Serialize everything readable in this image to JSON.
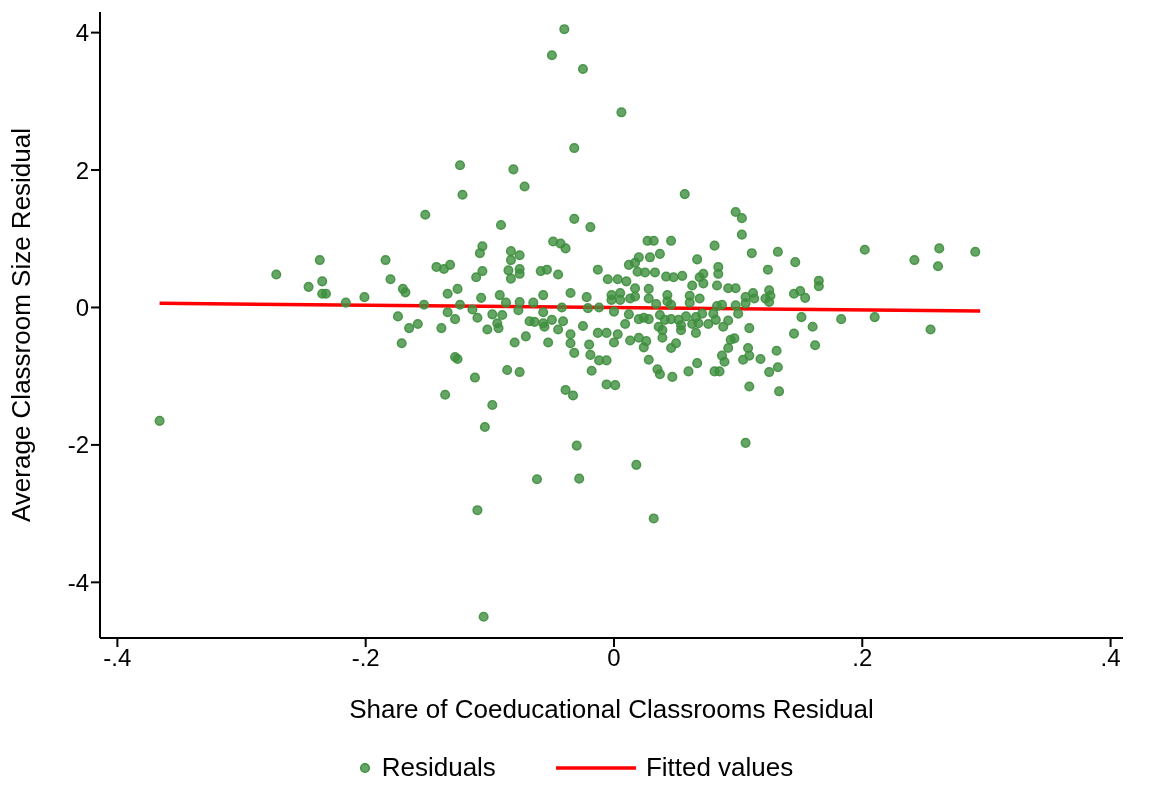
{
  "chart_data": {
    "type": "scatter",
    "xlabel": "Share of Coeducational Classrooms Residual",
    "ylabel": "Average Classroom Size Residual",
    "xlim": [
      -0.414,
      0.41
    ],
    "ylim": [
      -4.81,
      4.3
    ],
    "xticks": [
      {
        "value": -0.4,
        "label": "-.4"
      },
      {
        "value": -0.2,
        "label": "-.2"
      },
      {
        "value": 0,
        "label": "0"
      },
      {
        "value": 0.2,
        "label": ".2"
      },
      {
        "value": 0.4,
        "label": ".4"
      }
    ],
    "yticks": [
      -4,
      -2,
      0,
      2,
      4
    ],
    "legend": "bottom",
    "series": [
      {
        "name": "Residuals",
        "color": "#3f8f3f",
        "marker": "circle",
        "x": [
          -0.04,
          -0.05,
          -0.025,
          -0.032,
          -0.124,
          -0.081,
          -0.072,
          -0.122,
          -0.152,
          -0.032,
          -0.091,
          -0.019,
          -0.049,
          -0.043,
          -0.039,
          -0.106,
          -0.108,
          -0.083,
          -0.076,
          -0.083,
          -0.272,
          -0.237,
          -0.184,
          -0.246,
          -0.235,
          -0.235,
          -0.232,
          -0.18,
          -0.17,
          -0.168,
          -0.201,
          -0.216,
          -0.143,
          -0.137,
          -0.132,
          -0.153,
          -0.134,
          -0.126,
          -0.106,
          -0.111,
          -0.059,
          -0.054,
          -0.045,
          -0.013,
          -0.076,
          -0.076,
          -0.085,
          -0.083,
          0.006,
          0.057,
          0.098,
          0.103,
          0.103,
          0.027,
          0.032,
          0.046,
          0.081,
          0.037,
          0.02,
          0.029,
          0.067,
          0.111,
          0.132,
          0.146,
          0.124,
          0.202,
          0.242,
          0.262,
          0.261,
          0.291,
          0.165,
          0.165,
          0.145,
          0.15,
          0.154,
          0.012,
          0.017,
          0.019,
          0.025,
          0.033,
          0.042,
          0.048,
          0.055,
          0.084,
          0.084,
          0.083,
          0.072,
          0.069,
          0.072,
          0.003,
          0.01,
          -0.005,
          0.112,
          0.106,
          0.125,
          0.126,
          0.092,
          0.098,
          0.061,
          0.063,
          0.017,
          0.028,
          0.043,
          0.005,
          -0.002,
          -0.366,
          -0.105,
          -0.11,
          -0.062,
          -0.028,
          -0.03,
          -0.104,
          -0.098,
          -0.136,
          -0.112,
          -0.039,
          -0.033,
          -0.086,
          -0.076,
          -0.018,
          -0.128,
          -0.126,
          -0.032,
          -0.019,
          -0.012,
          -0.006,
          -0.171,
          -0.08,
          -0.071,
          -0.053,
          -0.035,
          -0.035,
          -0.02,
          -0.013,
          -0.139,
          -0.165,
          -0.158,
          -0.174,
          -0.134,
          -0.128,
          -0.11,
          -0.102,
          -0.093,
          -0.098,
          -0.09,
          -0.094,
          -0.068,
          -0.064,
          -0.057,
          -0.056,
          -0.05,
          -0.041,
          -0.045,
          -0.057,
          -0.025,
          -0.114,
          -0.077,
          0.032,
          0.018,
          0.106,
          0.133,
          0.109,
          0.001,
          0.125,
          0.132,
          0.081,
          0.085,
          0.06,
          0.047,
          0.037,
          0.035,
          0.067,
          0.028,
          -0.006,
          0.089,
          0.087,
          0.104,
          0.109,
          0.118,
          0.131,
          0.108,
          0.092,
          0.162,
          0.255,
          0.21,
          0.183,
          0.16,
          0.145,
          0.151,
          0.046,
          0.05,
          0.024,
          0.02,
          0.026,
          0.013,
          0.0,
          0.003,
          0.009,
          -0.006,
          0.039,
          0.039,
          0.036,
          0.054,
          0.054,
          0.066,
          0.063,
          0.068,
          0.066,
          0.088,
          0.076,
          0.082,
          0.092,
          0.097,
          0.094,
          0.109,
          0.037,
          0.041,
          0.046,
          0.052,
          0.058,
          0.02,
          0.024,
          0.028,
          0.012,
          0.0,
          0.1,
          0.071,
          0.08,
          -0.002,
          0.005,
          0.013,
          0.017,
          0.028,
          0.034,
          0.043,
          0.046,
          0.061,
          0.069,
          0.083,
          0.087,
          0.098,
          0.106,
          0.113,
          0.122,
          0.125,
          -0.107,
          -0.092,
          -0.076,
          -0.065,
          -0.057,
          -0.042,
          -0.035,
          -0.022,
          -0.021,
          -0.012,
          -0.087,
          -0.124
        ],
        "values": [
          4.05,
          3.67,
          3.47,
          2.32,
          2.07,
          2.01,
          1.76,
          1.64,
          1.35,
          1.29,
          1.2,
          1.17,
          0.96,
          0.93,
          0.86,
          0.89,
          0.79,
          0.82,
          0.76,
          0.69,
          0.48,
          0.69,
          0.69,
          0.3,
          0.38,
          0.2,
          0.2,
          0.41,
          0.27,
          0.22,
          0.15,
          0.07,
          0.59,
          0.56,
          0.62,
          0.04,
          0.2,
          0.27,
          0.53,
          0.44,
          0.53,
          0.55,
          0.48,
          0.55,
          0.56,
          0.49,
          0.54,
          0.42,
          2.84,
          1.65,
          1.39,
          1.3,
          1.06,
          0.97,
          0.97,
          0.97,
          0.9,
          0.78,
          0.73,
          0.73,
          0.7,
          0.79,
          0.81,
          0.66,
          0.55,
          0.84,
          0.69,
          0.86,
          0.6,
          0.81,
          0.39,
          0.31,
          0.2,
          0.24,
          0.14,
          0.62,
          0.65,
          0.52,
          0.51,
          0.51,
          0.45,
          0.44,
          0.46,
          0.59,
          0.49,
          0.32,
          0.49,
          0.44,
          0.35,
          0.41,
          0.38,
          0.41,
          0.21,
          0.15,
          0.25,
          0.17,
          0.28,
          0.28,
          0.17,
          0.32,
          0.28,
          0.27,
          0.18,
          0.21,
          0.18,
          -1.65,
          -4.5,
          -2.95,
          -2.5,
          -2.49,
          -2.01,
          -1.74,
          -1.42,
          -1.27,
          -1.02,
          -1.2,
          -1.28,
          -0.91,
          -0.94,
          -0.92,
          -0.72,
          -0.75,
          -0.66,
          -0.69,
          -0.77,
          -1.12,
          -0.52,
          -0.51,
          -0.42,
          -0.51,
          -0.52,
          -0.39,
          -0.54,
          -0.37,
          -0.3,
          -0.3,
          -0.24,
          -0.13,
          -0.07,
          -0.17,
          -0.15,
          -0.32,
          -0.3,
          -0.1,
          -0.11,
          -0.23,
          -0.2,
          -0.21,
          -0.23,
          -0.28,
          -0.18,
          -0.2,
          -0.32,
          -0.07,
          -0.27,
          -0.03,
          -0.04,
          -3.07,
          -2.29,
          -1.97,
          -1.22,
          -1.15,
          -1.13,
          -0.94,
          -0.87,
          -0.93,
          -0.93,
          -0.93,
          -1.01,
          -0.97,
          -0.9,
          -0.81,
          -0.76,
          -0.77,
          -0.79,
          -0.7,
          -0.76,
          -0.7,
          -0.75,
          -0.63,
          -0.59,
          -0.59,
          -0.55,
          -0.32,
          -0.14,
          -0.17,
          -0.28,
          -0.38,
          -0.14,
          -0.59,
          -0.52,
          -0.58,
          -0.44,
          -0.49,
          -0.48,
          -0.51,
          -0.39,
          -0.24,
          -0.37,
          -0.44,
          -0.33,
          -0.28,
          -0.33,
          -0.26,
          -0.37,
          -0.24,
          -0.23,
          -0.14,
          -0.28,
          -0.24,
          -0.18,
          -0.19,
          -0.45,
          -0.47,
          -0.3,
          -0.11,
          -0.18,
          -0.17,
          -0.18,
          -0.13,
          -0.17,
          -0.15,
          -0.17,
          -0.1,
          -0.06,
          -0.09,
          -0.09,
          -0.09,
          0.11,
          0.11,
          0.13,
          0.16,
          0.13,
          0.05,
          0.09,
          0.04,
          0.07,
          0.13,
          0.02,
          0.04,
          0.03,
          0.06,
          0.13,
          0.13,
          0.08,
          0.14,
          0.18,
          0.08,
          0.07,
          0.18,
          0.0,
          0.21,
          0.15,
          -0.01,
          0.0,
          0.07,
          0.04
        ]
      },
      {
        "name": "Fitted values",
        "type": "line",
        "color": "#ff0000",
        "line_style": "solid",
        "x": [
          -0.366,
          0.295
        ],
        "values": [
          0.06,
          -0.05
        ]
      }
    ]
  }
}
